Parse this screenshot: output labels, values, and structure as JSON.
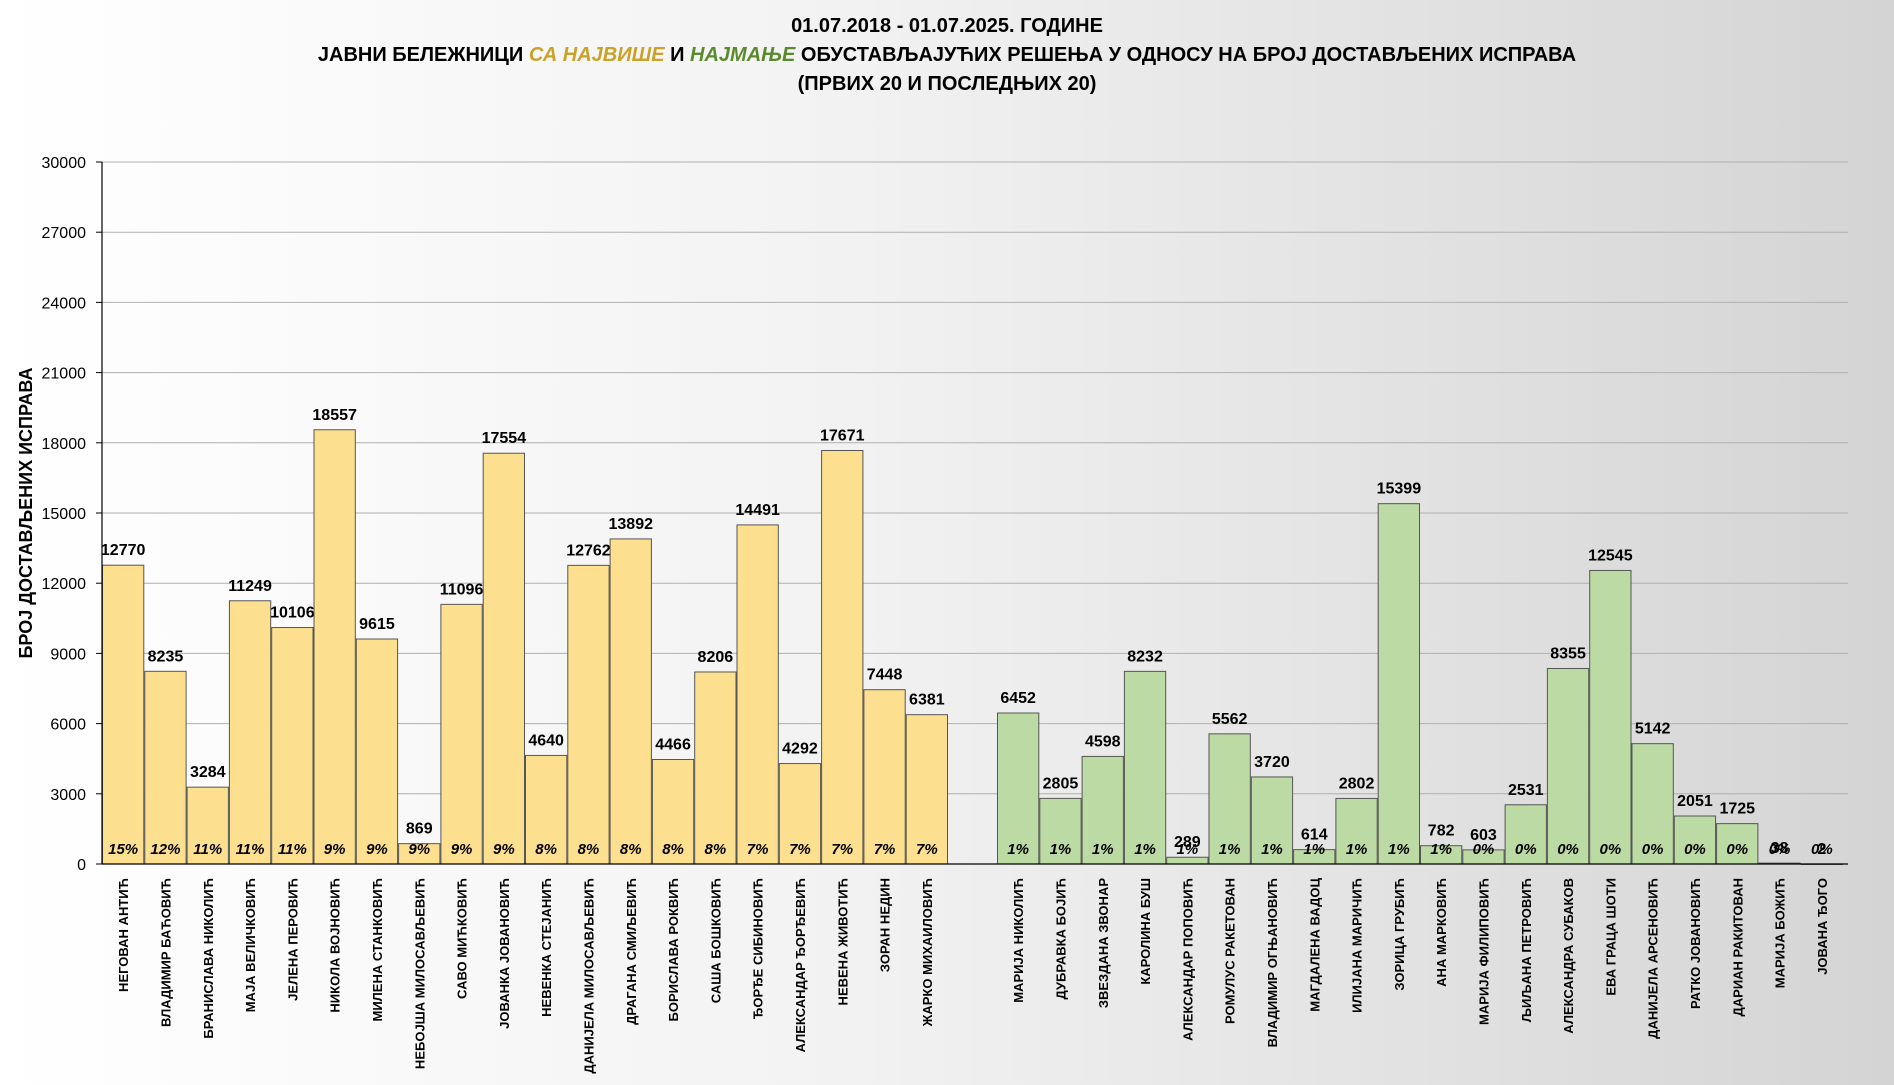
{
  "chart_data": {
    "type": "bar",
    "title": {
      "line1": "01.07.2018 - 01.07.2025. ГОДИНЕ",
      "line2_prefix": "ЈАВНИ БЕЛЕЖНИЦИ ",
      "line2_sa": "СА ",
      "line2_high": "НАЈВИШЕ",
      "line2_and": " И ",
      "line2_low": "НАЈМАЊЕ",
      "line2_suffix": " ОБУСТАВЉАЈУЋИХ РЕШЕЊА У ОДНОСУ НА БРОЈ ДОСТАВЉЕНИХ ИСПРАВА",
      "line3": "(ПРВИХ 20 И ПОСЛЕДЊИХ 20)"
    },
    "ylabel": "БРОЈ ДОСТАВЉЕНИХ ИСПРАВА",
    "ylim": [
      0,
      30000
    ],
    "yticks": [
      0,
      3000,
      6000,
      9000,
      12000,
      15000,
      18000,
      21000,
      24000,
      27000,
      30000
    ],
    "grid": true,
    "colors": {
      "high": "#fde08f",
      "low": "#bcdaa3",
      "bar_stroke": "#555555",
      "grid": "#b0b0b0"
    },
    "groups": [
      {
        "group": "high",
        "categories": [
          "НЕГОВАН АНТИЋ",
          "ВЛАДИМИР БАЋОВИЋ",
          "БРАНИСЛАВА НИКОЛИЋ",
          "МАЈА ВЕЛИЧКОВИЋ",
          "ЈЕЛЕНА ПЕРОВИЋ",
          "НИКОЛА ВОЈНОВИЋ",
          "МИЛЕНА СТАНКОВИЋ",
          "НЕБОЈША МИЛОСАВЉЕВИЋ",
          "САВО МИЋКОВИЋ",
          "ЈОВАНКА ЈОВАНОВИЋ",
          "НЕВЕНКА СТЕЈАНИЋ",
          "ДАНИЈЕЛА МИЛОСАВЉЕВИЋ",
          "ДРАГАНА СМИЉЕВИЋ",
          "БОРИСЛАВА РОКВИЋ",
          "САША БОШКОВИЋ",
          "ЂОРЂЕ СИБИНОВИЋ",
          "АЛЕКСАНДАР ЂОРЂЕВИЋ",
          "НЕВЕНА ЖИВОТИЋ",
          "ЗОРАН НЕДИН",
          "ЖАРКО МИХАИЛОВИЋ"
        ],
        "values": [
          12770,
          8235,
          3284,
          11249,
          10106,
          18557,
          9615,
          869,
          11096,
          17554,
          4640,
          12762,
          13892,
          4466,
          8206,
          14491,
          4292,
          17671,
          7448,
          6381
        ],
        "percent_labels": [
          "15%",
          "12%",
          "11%",
          "11%",
          "11%",
          "9%",
          "9%",
          "9%",
          "9%",
          "9%",
          "8%",
          "8%",
          "8%",
          "8%",
          "8%",
          "7%",
          "7%",
          "7%",
          "7%",
          "7%"
        ]
      },
      {
        "group": "low",
        "categories": [
          "МАРИЈА НИКОЛИЋ",
          "ДУБРАВКА БОЈИЋ",
          "ЗВЕЗДАНА ЗВОНАР",
          "КАРОЛИНА БУШ",
          "АЛЕКСАНДАР ПОПОВИЋ",
          "РОМУЛУС РАКЕТОВАН",
          "ВЛАДИМИР ОГЊАНОВИЋ",
          "МАГДАЛЕНА ВАДОЦ",
          "ИЛИЈАНА МАРИЧИЋ",
          "ЗОРИЦА ГРУБИЋ",
          "АНА МАРКОВИЋ",
          "МАРИЈА ФИЛИПОВИЋ",
          "ЉИЉАНА ПЕТРОВИЋ",
          "АЛЕКСАНДРА СУБАКОВ",
          "ЕВА ГРАЦА ШОТИ",
          "ДАНИЈЕЛА АРСЕНОВИЋ",
          "РАТКО ЈОВАНОВИЋ",
          "ДАРИАН РАКИТОВАН",
          "МАРИЈА БОЖИЋ",
          "ЈОВАНА ЂОГО"
        ],
        "values": [
          6452,
          2805,
          4598,
          8232,
          289,
          5562,
          3720,
          614,
          2802,
          15399,
          782,
          603,
          2531,
          8355,
          12545,
          5142,
          2051,
          1725,
          38,
          2
        ],
        "percent_labels": [
          "1%",
          "1%",
          "1%",
          "1%",
          "1%",
          "1%",
          "1%",
          "1%",
          "1%",
          "1%",
          "1%",
          "0%",
          "0%",
          "0%",
          "0%",
          "0%",
          "0%",
          "0%",
          "0%",
          "0%"
        ]
      }
    ]
  }
}
